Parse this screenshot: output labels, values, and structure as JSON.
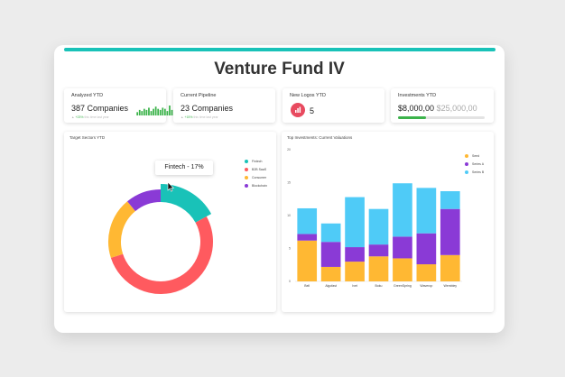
{
  "dashboard": {
    "title": "Venture Fund IV"
  },
  "kpis": {
    "analyzed": {
      "label": "Analyzed YTD",
      "value": "387 Companies",
      "delta": "+23%",
      "delta_note": "this time last year",
      "spark_values": [
        3,
        5,
        4,
        6,
        5,
        7,
        4,
        6,
        8,
        6,
        5,
        7,
        6,
        4,
        9,
        5,
        6,
        7
      ]
    },
    "pipeline": {
      "label": "Current Pipeline",
      "value": "23 Companies",
      "delta": "+15%",
      "delta_note": "this time last year"
    },
    "logos": {
      "label": "New Logos YTD",
      "value": "5",
      "icon": "bar-chart-icon"
    },
    "investments": {
      "label": "Investments YTD",
      "value": "$8,000,00",
      "target": "$25,000,00",
      "progress_fraction": 0.32
    }
  },
  "colors": {
    "accent": "#19c2b8",
    "red": "#ff5a5f",
    "yellow": "#ffb833",
    "purple": "#8a3ad6",
    "blue": "#4fcbf7",
    "green": "#3cb34b"
  },
  "chart_data": [
    {
      "type": "pie",
      "title": "Target Sectors YTD",
      "labels": [
        "Fintech",
        "B2B SaaS",
        "Consumer",
        "Blockchain"
      ],
      "values": [
        17,
        53,
        19,
        11
      ],
      "colors": [
        "#19c2b8",
        "#ff5a5f",
        "#ffb833",
        "#8a3ad6"
      ],
      "tooltip": "Fintech - 17%",
      "legend": "top-right"
    },
    {
      "type": "bar",
      "stacked": true,
      "title": "Top Investments: Current Valuations",
      "categories": [
        "Bell",
        "Algofast",
        "Ivet",
        "Boku",
        "GreenSpring",
        "Waverop",
        "Wembley"
      ],
      "series": [
        {
          "name": "Seed",
          "color": "#ffb833",
          "values": [
            6.2,
            2.2,
            3.0,
            3.8,
            3.5,
            2.6,
            4.0
          ]
        },
        {
          "name": "Series A",
          "color": "#8a3ad6",
          "values": [
            1.0,
            3.8,
            2.2,
            1.8,
            3.3,
            4.7,
            7.0
          ]
        },
        {
          "name": "Series B",
          "color": "#4fcbf7",
          "values": [
            3.9,
            2.8,
            7.6,
            5.4,
            8.1,
            6.9,
            2.7
          ]
        }
      ],
      "ylim": [
        0,
        20
      ],
      "yticks": [
        "20",
        "15",
        "10",
        "5",
        "0"
      ],
      "legend": "top-right",
      "grid": false
    }
  ]
}
